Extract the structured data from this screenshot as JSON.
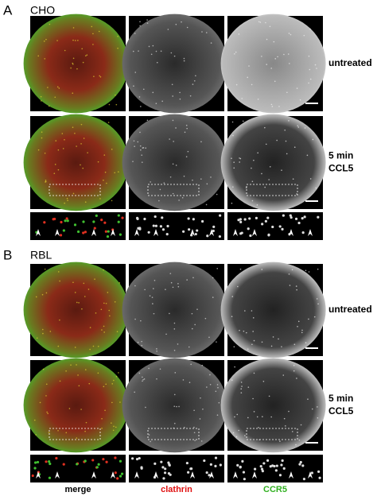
{
  "panels": [
    {
      "label": "A",
      "cell_line": "CHO",
      "rows": [
        {
          "condition": [
            "untreated"
          ]
        },
        {
          "condition": [
            "5 min",
            "CCL5"
          ]
        }
      ]
    },
    {
      "label": "B",
      "cell_line": "RBL",
      "rows": [
        {
          "condition": [
            "untreated"
          ]
        },
        {
          "condition": [
            "5 min",
            "CCL5"
          ]
        }
      ]
    }
  ],
  "channels": [
    "merge",
    "clathrin",
    "CCR5"
  ]
}
